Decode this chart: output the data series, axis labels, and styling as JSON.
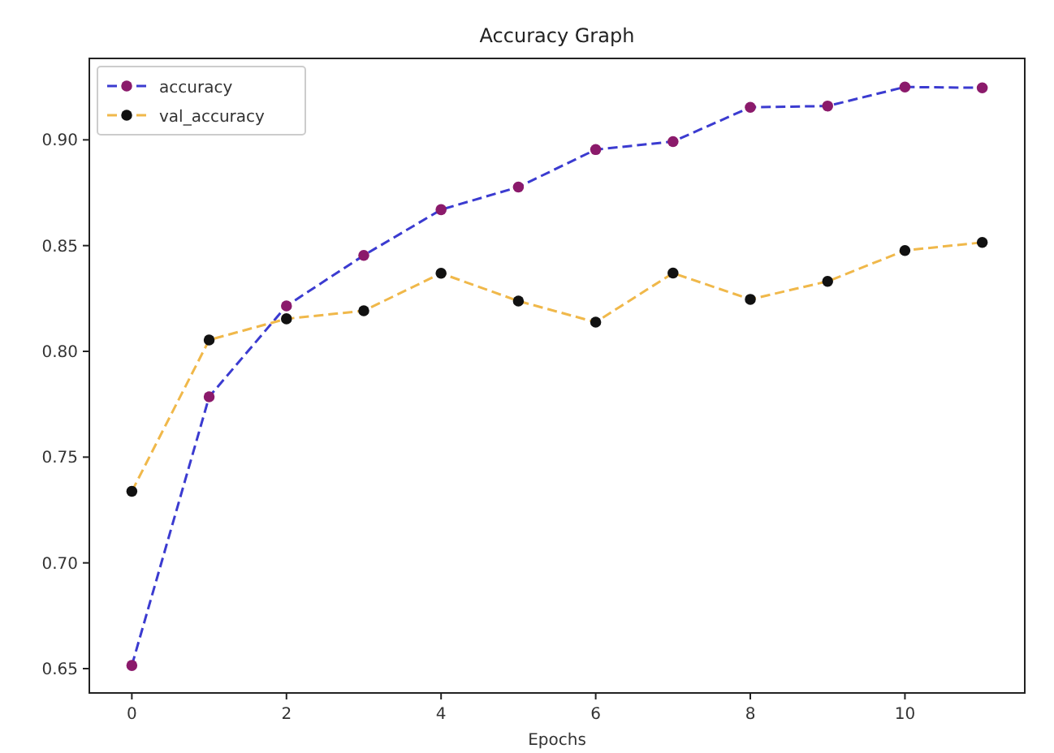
{
  "chart_data": {
    "type": "line",
    "title": "Accuracy Graph",
    "xlabel": "Epochs",
    "x": [
      0,
      1,
      2,
      3,
      4,
      5,
      6,
      7,
      8,
      9,
      10,
      11
    ],
    "series": [
      {
        "name": "accuracy",
        "color": "#3b3bd0",
        "colors": [
          "#8b1a6b",
          "#8b1a6b",
          "#8b1a6b",
          "#8b1a6b",
          "#8b1a6b",
          "#8b1a6b",
          "#8b1a6b",
          "#8b1a6b",
          "#8b1a6b",
          "#8b1a6b",
          "#8b1a6b",
          "#8b1a6b"
        ],
        "values": [
          0.6515,
          0.7785,
          0.8215,
          0.8454,
          0.867,
          0.8777,
          0.8954,
          0.8992,
          0.9154,
          0.916,
          0.925,
          0.9246
        ]
      },
      {
        "name": "val_accuracy",
        "color": "#f0b84a",
        "colors": [
          "#111111",
          "#111111",
          "#111111",
          "#111111",
          "#111111",
          "#111111",
          "#111111",
          "#111111",
          "#111111",
          "#111111",
          "#111111",
          "#111111"
        ],
        "values": [
          0.7338,
          0.8054,
          0.8154,
          0.8192,
          0.8369,
          0.8238,
          0.8138,
          0.837,
          0.8246,
          0.8331,
          0.8477,
          0.8515
        ]
      }
    ],
    "xlim": [
      -0.55,
      11.55
    ],
    "xticks": [
      0,
      2,
      4,
      6,
      8,
      10
    ],
    "ylim": [
      0.6385,
      0.9385
    ],
    "yticks": [
      {
        "value": 0.65,
        "label": "0.65"
      },
      {
        "value": 0.7,
        "label": "0.70"
      },
      {
        "value": 0.75,
        "label": "0.75"
      },
      {
        "value": 0.8,
        "label": "0.80"
      },
      {
        "value": 0.85,
        "label": "0.85"
      },
      {
        "value": 0.9,
        "label": "0.90"
      }
    ],
    "grid": false,
    "legend": "top left",
    "marker": "circle",
    "line_style": "dashed"
  }
}
